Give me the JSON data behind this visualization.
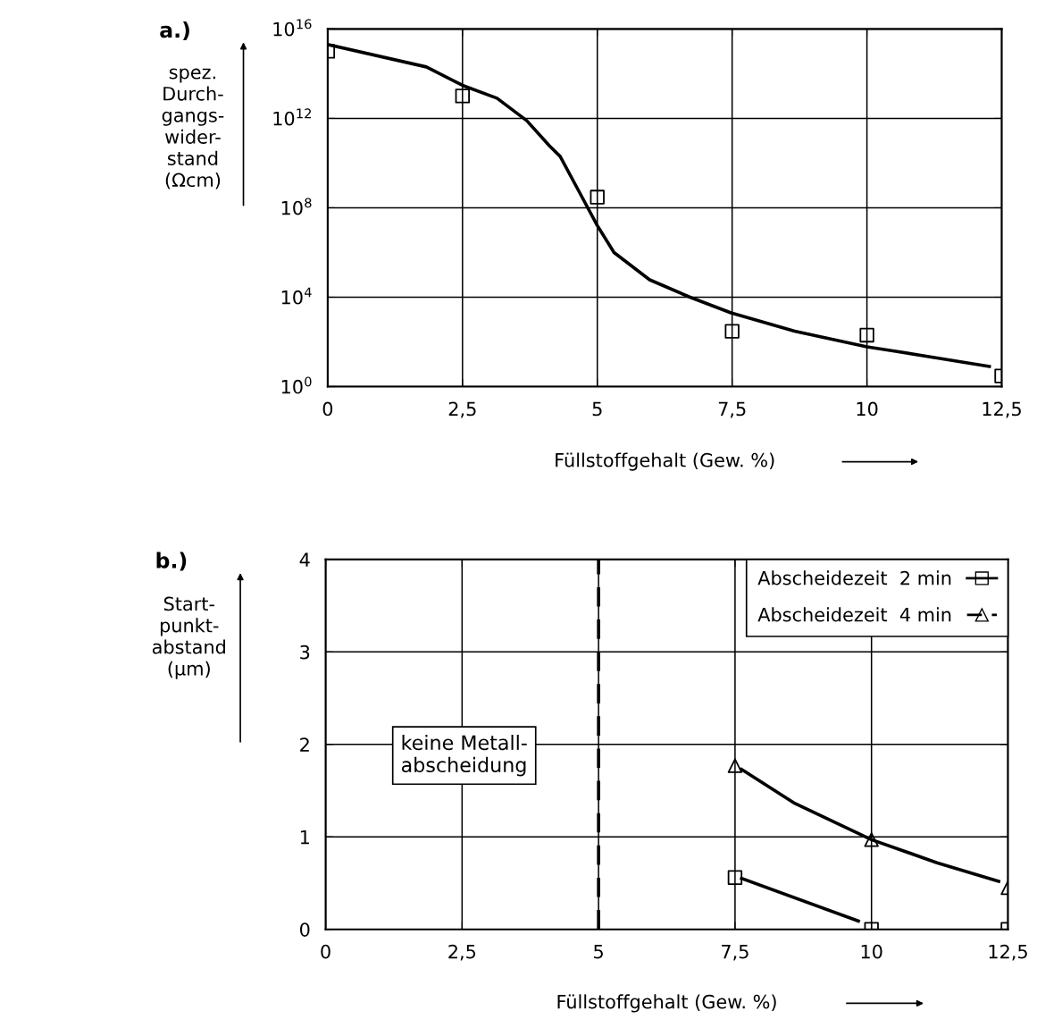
{
  "chart_data": [
    {
      "type": "scatter",
      "title": "a.)",
      "xlabel": "Füllstoffgehalt (Gew. %)",
      "ylabel": "spez.\nDurch-\ngangs-\nwider-\nstand\n(Ωcm)",
      "log": "y",
      "grid": true,
      "legend": false,
      "xlim": [
        0,
        12.5
      ],
      "xticks": [
        0,
        {
          "value": 2.5,
          "label": "2,5"
        },
        5,
        {
          "value": 7.5,
          "label": "7,5"
        },
        10,
        {
          "value": 12.5,
          "label": "12,5"
        }
      ],
      "ylim": [
        1,
        1e+16
      ],
      "yticks": [
        {
          "value": 1,
          "label": "10$^{0}$"
        },
        {
          "value": 10000.0,
          "label": "10$^{4}$"
        },
        {
          "value": 100000000.0,
          "label": "10$^{8}$"
        },
        {
          "value": 1000000000000.0,
          "label": "10$^{12}$"
        },
        {
          "value": 1e+16,
          "label": "10$^{16}$"
        }
      ],
      "series": [
        {
          "type": "scatter",
          "marker": "square",
          "color": "#000000",
          "x": [
            0,
            2.5,
            5,
            7.5,
            10,
            12.5
          ],
          "values": [
            1000000000000000.0,
            10000000000000.0,
            300000000.0,
            300.0,
            200.0,
            3
          ]
        },
        {
          "type": "line",
          "color": "#000000",
          "line_style": "solid",
          "marker": "none",
          "x": [
            0,
            1.83,
            2.5,
            3.14,
            3.69,
            4.11,
            4.31,
            4.65,
            5.0,
            5.31,
            5.97,
            6.72,
            7.48,
            8.66,
            10,
            10.48,
            11.25,
            12.27
          ],
          "values": [
            2000000000000000.0,
            200000000000000.0,
            30000000000000.0,
            8000000000000.0,
            800000000000.0,
            60000000000.0,
            20000000000.0,
            600000000.0,
            16000000.0,
            1000000.0,
            60000.0,
            10000.0,
            2000.0,
            300.0,
            60.0,
            40.0,
            20.0,
            8
          ]
        }
      ]
    },
    {
      "type": "scatter",
      "title": "b.)",
      "xlabel": "Füllstoffgehalt (Gew. %)",
      "ylabel": "Start-\npunkt-\nabstand\n(µm)",
      "grid": true,
      "legend": "top right",
      "xlim": [
        0,
        12.5
      ],
      "xticks": [
        0,
        {
          "value": 2.5,
          "label": "2,5"
        },
        5,
        {
          "value": 7.5,
          "label": "7,5"
        },
        10,
        {
          "value": 12.5,
          "label": "12,5"
        }
      ],
      "ylim": [
        0,
        4
      ],
      "yticks": [
        0,
        1,
        2,
        3,
        4
      ],
      "ref_lines": [
        {
          "axis": "x",
          "value": 5,
          "color": "#000000",
          "line_style": "dashed"
        }
      ],
      "annotations": [
        "keine Metall-\nabscheidung"
      ],
      "series": [
        {
          "type": "scatter",
          "name": "Abscheidezeit  2 min",
          "marker": "square",
          "line_style": "solid",
          "color": "#000000",
          "x": [
            7.5,
            10,
            12.5
          ],
          "values": [
            0.56,
            0,
            0
          ]
        },
        {
          "type": "scatter",
          "name": "Abscheidezeit  4 min",
          "marker": "triangle",
          "line_style": "dashed",
          "color": "#000000",
          "x": [
            7.5,
            10,
            12.5
          ],
          "values": [
            1.77,
            0.97,
            0.45
          ]
        },
        {
          "type": "line",
          "color": "#000000",
          "line_style": "solid",
          "marker": "none",
          "x": [
            7.62,
            9.76
          ],
          "values": [
            0.55,
            0.09
          ]
        },
        {
          "type": "line",
          "color": "#000000",
          "line_style": "solid",
          "marker": "none",
          "x": [
            7.62,
            8.6,
            10,
            11.2,
            12.33
          ],
          "values": [
            1.73,
            1.36,
            0.97,
            0.72,
            0.52
          ]
        }
      ]
    }
  ]
}
